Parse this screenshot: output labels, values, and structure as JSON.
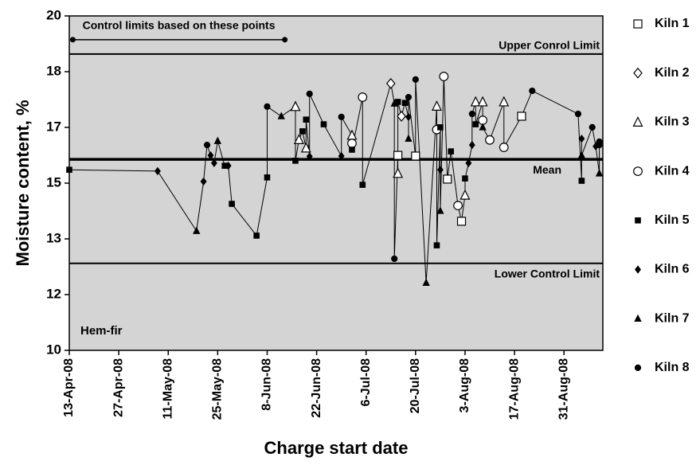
{
  "chart_data": {
    "type": "scatter",
    "y_label": "Moisture content, %",
    "x_label": "Charge start date",
    "ylim": [
      10,
      20
    ],
    "yticks": [
      10,
      {
        "value": 11.667,
        "label": "12"
      },
      {
        "value": 13.333,
        "label": "13"
      },
      15,
      {
        "value": 16.667,
        "label": "17"
      },
      {
        "value": 18.333,
        "label": "18"
      },
      20
    ],
    "xlim": [
      "2008-04-13",
      "2008-09-11"
    ],
    "xticks": [
      {
        "value": "2008-04-13",
        "label": "13-Apr-08"
      },
      {
        "value": "2008-04-27",
        "label": "27-Apr-08"
      },
      {
        "value": "2008-05-11",
        "label": "11-May-08"
      },
      {
        "value": "2008-05-25",
        "label": "25-May-08"
      },
      {
        "value": "2008-06-08",
        "label": "8-Jun-08"
      },
      {
        "value": "2008-06-22",
        "label": "22-Jun-08"
      },
      {
        "value": "2008-07-06",
        "label": "6-Jul-08"
      },
      {
        "value": "2008-07-20",
        "label": "20-Jul-08"
      },
      {
        "value": "2008-08-03",
        "label": "3-Aug-08"
      },
      {
        "value": "2008-08-17",
        "label": "17-Aug-08"
      },
      {
        "value": "2008-08-31",
        "label": "31-Aug-08"
      }
    ],
    "background": "#d4d4d4",
    "connect_points": true,
    "reference_lines": [
      {
        "label": "Upper Conrol Limit",
        "value": 18.86,
        "width": 2
      },
      {
        "label": "Mean",
        "value": 15.71,
        "width": 3.5
      },
      {
        "label": "Lower Control Limit",
        "value": 12.6,
        "width": 2
      }
    ],
    "annotations": [
      {
        "text": "Control limits based on these points",
        "x": [
          "2008-04-14",
          "2008-06-13"
        ],
        "y": 19.29
      },
      {
        "text": "Hem-fir"
      }
    ],
    "series": [
      {
        "name": "Kiln 1",
        "marker": "square",
        "filled": false,
        "color": "#000",
        "x": [
          "2008-07-15",
          "2008-07-20",
          "2008-07-29",
          "2008-08-02",
          "2008-08-19"
        ],
        "values": [
          15.83,
          15.81,
          15.12,
          13.86,
          17.0
        ]
      },
      {
        "name": "Kiln 2",
        "marker": "diamond",
        "filled": false,
        "color": "#000",
        "x": [
          "2008-07-13",
          "2008-07-16"
        ],
        "values": [
          17.98,
          17.0
        ]
      },
      {
        "name": "Kiln 3",
        "marker": "triangle",
        "filled": false,
        "color": "#000",
        "x": [
          "2008-06-16",
          "2008-06-17",
          "2008-06-19",
          "2008-07-02",
          "2008-07-15",
          "2008-07-26",
          "2008-08-03",
          "2008-08-06",
          "2008-08-08",
          "2008-08-14"
        ],
        "values": [
          17.29,
          16.3,
          16.05,
          16.43,
          15.29,
          17.3,
          14.64,
          17.43,
          17.43,
          17.43
        ]
      },
      {
        "name": "Kiln 4",
        "marker": "circle",
        "filled": false,
        "color": "#000",
        "x": [
          "2008-07-02",
          "2008-07-05",
          "2008-07-26",
          "2008-07-28",
          "2008-08-01",
          "2008-08-08",
          "2008-08-10",
          "2008-08-14"
        ],
        "values": [
          16.19,
          17.57,
          16.6,
          18.19,
          14.33,
          16.88,
          16.29,
          16.07
        ]
      },
      {
        "name": "Kiln 5",
        "marker": "square",
        "filled": true,
        "color": "#000",
        "x": [
          "2008-04-13",
          "2008-05-27",
          "2008-05-29",
          "2008-06-05",
          "2008-06-08",
          "2008-06-16",
          "2008-06-18",
          "2008-06-19",
          "2008-06-24",
          "2008-07-02",
          "2008-07-05",
          "2008-07-15",
          "2008-07-17",
          "2008-07-26",
          "2008-07-27",
          "2008-07-30",
          "2008-08-03",
          "2008-08-06",
          "2008-09-05"
        ],
        "values": [
          15.4,
          15.52,
          14.38,
          13.43,
          15.17,
          15.67,
          16.55,
          16.9,
          16.76,
          16.0,
          14.95,
          17.43,
          17.4,
          13.14,
          16.67,
          15.95,
          15.14,
          16.76,
          15.07
        ]
      },
      {
        "name": "Kiln 6",
        "marker": "diamond",
        "filled": true,
        "color": "#000",
        "x": [
          "2008-05-08",
          "2008-05-21",
          "2008-05-23",
          "2008-05-24",
          "2008-05-28",
          "2008-06-20",
          "2008-06-29",
          "2008-07-18",
          "2008-07-27",
          "2008-08-04",
          "2008-08-05",
          "2008-09-05",
          "2008-09-09"
        ],
        "values": [
          15.36,
          15.05,
          15.83,
          15.6,
          15.52,
          15.8,
          15.81,
          16.98,
          15.4,
          15.6,
          16.14,
          16.33,
          16.1
        ]
      },
      {
        "name": "Kiln 7",
        "marker": "triangle",
        "filled": true,
        "color": "#000",
        "x": [
          "2008-05-19",
          "2008-05-25",
          "2008-06-12",
          "2008-07-14",
          "2008-07-18",
          "2008-07-23",
          "2008-07-27",
          "2008-08-08",
          "2008-09-05",
          "2008-09-10"
        ],
        "values": [
          13.57,
          16.26,
          17.0,
          17.38,
          16.33,
          12.02,
          14.17,
          16.67,
          15.83,
          15.29
        ]
      },
      {
        "name": "Kiln 8",
        "marker": "circle",
        "filled": true,
        "color": "#000",
        "x": [
          "2008-05-22",
          "2008-06-08",
          "2008-06-20",
          "2008-06-29",
          "2008-07-14",
          "2008-07-18",
          "2008-07-20",
          "2008-08-05",
          "2008-08-22",
          "2008-09-04",
          "2008-09-08",
          "2008-09-10",
          "2008-09-10"
        ],
        "values": [
          16.14,
          17.29,
          17.67,
          16.98,
          12.74,
          17.57,
          18.1,
          17.07,
          17.76,
          17.07,
          16.67,
          16.14,
          16.24
        ]
      }
    ]
  }
}
